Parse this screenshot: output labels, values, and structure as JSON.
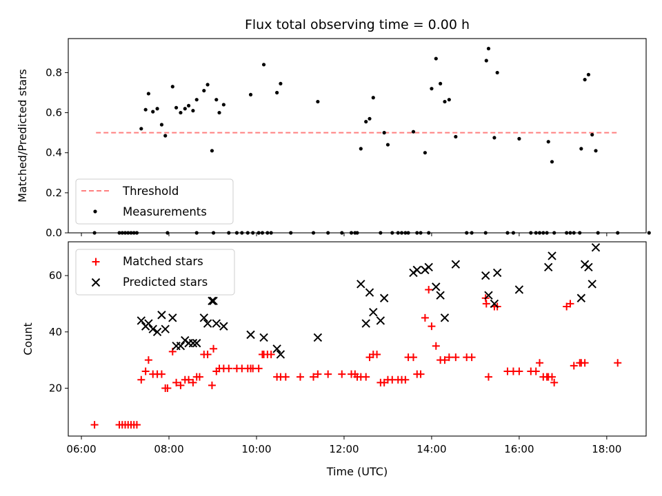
{
  "chart_data": [
    {
      "type": "scatter",
      "title": "Flux total observing time = 0.00 h",
      "xlabel": "",
      "ylabel": "Matched/Predicted stars",
      "xlim": [
        "05:42",
        "18:54"
      ],
      "ylim": [
        0.0,
        0.97
      ],
      "y_ticks": [
        0.0,
        0.2,
        0.4,
        0.6,
        0.8
      ],
      "x_ticks": [
        "06:00",
        "08:00",
        "10:00",
        "12:00",
        "14:00",
        "16:00",
        "18:00"
      ],
      "x_tick_labels_shown": false,
      "legend_position": "lower-left",
      "series": [
        {
          "name": "Threshold",
          "kind": "line",
          "style": "dashed",
          "color": "#ff7f7f",
          "points": [
            [
              "06:20",
              0.5
            ],
            [
              "18:14",
              0.5
            ]
          ]
        },
        {
          "name": "Measurements",
          "kind": "scatter",
          "marker": "dot",
          "color": "#000000",
          "points": [
            [
              "06:18",
              0.0
            ],
            [
              "06:52",
              0.0
            ],
            [
              "06:56",
              0.0
            ],
            [
              "07:00",
              0.0
            ],
            [
              "07:04",
              0.0
            ],
            [
              "07:08",
              0.0
            ],
            [
              "07:12",
              0.0
            ],
            [
              "07:16",
              0.0
            ],
            [
              "07:22",
              0.52
            ],
            [
              "07:28",
              0.615
            ],
            [
              "07:32",
              0.695
            ],
            [
              "07:38",
              0.605
            ],
            [
              "07:44",
              0.62
            ],
            [
              "07:50",
              0.54
            ],
            [
              "07:55",
              0.485
            ],
            [
              "07:58",
              0.0
            ],
            [
              "08:05",
              0.73
            ],
            [
              "08:10",
              0.625
            ],
            [
              "08:16",
              0.6
            ],
            [
              "08:22",
              0.62
            ],
            [
              "08:27",
              0.635
            ],
            [
              "08:33",
              0.61
            ],
            [
              "08:38",
              0.665
            ],
            [
              "08:38",
              0.0
            ],
            [
              "08:48",
              0.71
            ],
            [
              "08:53",
              0.74
            ],
            [
              "08:59",
              0.41
            ],
            [
              "09:01",
              0.0
            ],
            [
              "09:05",
              0.665
            ],
            [
              "09:09",
              0.6
            ],
            [
              "09:15",
              0.64
            ],
            [
              "09:22",
              0.0
            ],
            [
              "09:33",
              0.0
            ],
            [
              "09:40",
              0.0
            ],
            [
              "09:48",
              0.0
            ],
            [
              "09:52",
              0.69
            ],
            [
              "09:55",
              0.0
            ],
            [
              "10:03",
              0.0
            ],
            [
              "10:08",
              0.0
            ],
            [
              "10:10",
              0.84
            ],
            [
              "10:15",
              0.0
            ],
            [
              "10:20",
              0.0
            ],
            [
              "10:28",
              0.7
            ],
            [
              "10:33",
              0.745
            ],
            [
              "10:47",
              0.0
            ],
            [
              "11:18",
              0.0
            ],
            [
              "11:24",
              0.655
            ],
            [
              "11:38",
              0.0
            ],
            [
              "11:57",
              0.0
            ],
            [
              "12:10",
              0.0
            ],
            [
              "12:15",
              0.0
            ],
            [
              "12:18",
              0.0
            ],
            [
              "12:23",
              0.42
            ],
            [
              "12:30",
              0.555
            ],
            [
              "12:35",
              0.57
            ],
            [
              "12:40",
              0.675
            ],
            [
              "12:50",
              0.0
            ],
            [
              "12:55",
              0.5
            ],
            [
              "13:00",
              0.44
            ],
            [
              "13:06",
              0.0
            ],
            [
              "13:14",
              0.0
            ],
            [
              "13:19",
              0.0
            ],
            [
              "13:24",
              0.0
            ],
            [
              "13:28",
              0.0
            ],
            [
              "13:35",
              0.505
            ],
            [
              "13:40",
              0.0
            ],
            [
              "13:45",
              0.0
            ],
            [
              "13:51",
              0.4
            ],
            [
              "13:56",
              0.0
            ],
            [
              "14:00",
              0.72
            ],
            [
              "14:06",
              0.87
            ],
            [
              "14:12",
              0.745
            ],
            [
              "14:18",
              0.655
            ],
            [
              "14:24",
              0.665
            ],
            [
              "14:33",
              0.48
            ],
            [
              "14:48",
              0.0
            ],
            [
              "14:55",
              0.0
            ],
            [
              "15:14",
              0.0
            ],
            [
              "15:15",
              0.86
            ],
            [
              "15:18",
              0.92
            ],
            [
              "15:26",
              0.475
            ],
            [
              "15:30",
              0.8
            ],
            [
              "15:44",
              0.0
            ],
            [
              "15:52",
              0.0
            ],
            [
              "16:00",
              0.47
            ],
            [
              "16:16",
              0.0
            ],
            [
              "16:23",
              0.0
            ],
            [
              "16:28",
              0.0
            ],
            [
              "16:33",
              0.0
            ],
            [
              "16:38",
              0.0
            ],
            [
              "16:40",
              0.455
            ],
            [
              "16:45",
              0.355
            ],
            [
              "16:48",
              0.0
            ],
            [
              "17:05",
              0.0
            ],
            [
              "17:10",
              0.0
            ],
            [
              "17:15",
              0.0
            ],
            [
              "17:23",
              0.0
            ],
            [
              "17:25",
              0.42
            ],
            [
              "17:30",
              0.765
            ],
            [
              "17:35",
              0.79
            ],
            [
              "17:40",
              0.49
            ],
            [
              "17:45",
              0.41
            ],
            [
              "17:48",
              0.0
            ],
            [
              "18:15",
              0.0
            ],
            [
              "18:58",
              0.0
            ]
          ]
        }
      ]
    },
    {
      "type": "scatter",
      "title": "",
      "xlabel": "Time (UTC)",
      "ylabel": "Count",
      "xlim": [
        "05:42",
        "18:54"
      ],
      "ylim": [
        3,
        72
      ],
      "y_ticks": [
        20,
        40,
        60
      ],
      "x_ticks": [
        "06:00",
        "08:00",
        "10:00",
        "12:00",
        "14:00",
        "16:00",
        "18:00"
      ],
      "legend_position": "upper-left",
      "series": [
        {
          "name": "Matched stars",
          "kind": "scatter",
          "marker": "plus",
          "color": "#ff0000",
          "points": [
            [
              "06:18",
              7
            ],
            [
              "06:52",
              7
            ],
            [
              "06:56",
              7
            ],
            [
              "07:00",
              7
            ],
            [
              "07:04",
              7
            ],
            [
              "07:08",
              7
            ],
            [
              "07:12",
              7
            ],
            [
              "07:16",
              7
            ],
            [
              "07:22",
              23
            ],
            [
              "07:28",
              26
            ],
            [
              "07:32",
              30
            ],
            [
              "07:38",
              25
            ],
            [
              "07:44",
              25
            ],
            [
              "07:50",
              25
            ],
            [
              "07:55",
              20
            ],
            [
              "07:58",
              20
            ],
            [
              "08:05",
              33
            ],
            [
              "08:10",
              22
            ],
            [
              "08:16",
              21
            ],
            [
              "08:22",
              23
            ],
            [
              "08:27",
              23
            ],
            [
              "08:33",
              22
            ],
            [
              "08:38",
              24
            ],
            [
              "08:42",
              24
            ],
            [
              "08:48",
              32
            ],
            [
              "08:53",
              32
            ],
            [
              "08:59",
              21
            ],
            [
              "09:01",
              34
            ],
            [
              "09:05",
              26
            ],
            [
              "09:09",
              27
            ],
            [
              "09:15",
              27
            ],
            [
              "09:22",
              27
            ],
            [
              "09:33",
              27
            ],
            [
              "09:40",
              27
            ],
            [
              "09:48",
              27
            ],
            [
              "09:52",
              27
            ],
            [
              "09:55",
              27
            ],
            [
              "10:03",
              27
            ],
            [
              "10:08",
              32
            ],
            [
              "10:10",
              32
            ],
            [
              "10:15",
              32
            ],
            [
              "10:20",
              32
            ],
            [
              "10:28",
              24
            ],
            [
              "10:33",
              24
            ],
            [
              "10:40",
              24
            ],
            [
              "11:00",
              24
            ],
            [
              "11:18",
              24
            ],
            [
              "11:24",
              25
            ],
            [
              "11:38",
              25
            ],
            [
              "11:57",
              25
            ],
            [
              "12:10",
              25
            ],
            [
              "12:15",
              25
            ],
            [
              "12:18",
              24
            ],
            [
              "12:23",
              24
            ],
            [
              "12:30",
              24
            ],
            [
              "12:35",
              31
            ],
            [
              "12:40",
              32
            ],
            [
              "12:45",
              32
            ],
            [
              "12:50",
              22
            ],
            [
              "12:55",
              22
            ],
            [
              "13:00",
              23
            ],
            [
              "13:06",
              23
            ],
            [
              "13:14",
              23
            ],
            [
              "13:19",
              23
            ],
            [
              "13:24",
              23
            ],
            [
              "13:28",
              31
            ],
            [
              "13:35",
              31
            ],
            [
              "13:40",
              25
            ],
            [
              "13:45",
              25
            ],
            [
              "13:51",
              45
            ],
            [
              "13:56",
              55
            ],
            [
              "14:00",
              42
            ],
            [
              "14:06",
              35
            ],
            [
              "14:12",
              30
            ],
            [
              "14:18",
              30
            ],
            [
              "14:24",
              31
            ],
            [
              "14:33",
              31
            ],
            [
              "14:48",
              31
            ],
            [
              "14:55",
              31
            ],
            [
              "15:14",
              52
            ],
            [
              "15:15",
              50
            ],
            [
              "15:18",
              24
            ],
            [
              "15:26",
              49
            ],
            [
              "15:30",
              49
            ],
            [
              "15:44",
              26
            ],
            [
              "15:52",
              26
            ],
            [
              "16:00",
              26
            ],
            [
              "16:16",
              26
            ],
            [
              "16:23",
              26
            ],
            [
              "16:28",
              29
            ],
            [
              "16:33",
              24
            ],
            [
              "16:38",
              24
            ],
            [
              "16:40",
              24
            ],
            [
              "16:45",
              24
            ],
            [
              "16:48",
              22
            ],
            [
              "17:05",
              49
            ],
            [
              "17:10",
              50
            ],
            [
              "17:15",
              28
            ],
            [
              "17:23",
              29
            ],
            [
              "17:25",
              29
            ],
            [
              "17:30",
              29
            ],
            [
              "18:15",
              29
            ]
          ]
        },
        {
          "name": "Predicted stars",
          "kind": "scatter",
          "marker": "x",
          "color": "#000000",
          "points": [
            [
              "07:22",
              44
            ],
            [
              "07:28",
              42
            ],
            [
              "07:32",
              43
            ],
            [
              "07:38",
              41
            ],
            [
              "07:44",
              40
            ],
            [
              "07:50",
              46
            ],
            [
              "07:55",
              41
            ],
            [
              "08:05",
              45
            ],
            [
              "08:10",
              35
            ],
            [
              "08:16",
              35
            ],
            [
              "08:22",
              37
            ],
            [
              "08:27",
              36
            ],
            [
              "08:33",
              36
            ],
            [
              "08:38",
              36
            ],
            [
              "08:48",
              45
            ],
            [
              "08:53",
              43
            ],
            [
              "08:59",
              51
            ],
            [
              "09:01",
              51
            ],
            [
              "09:05",
              43
            ],
            [
              "09:15",
              42
            ],
            [
              "09:52",
              39
            ],
            [
              "10:10",
              38
            ],
            [
              "10:28",
              34
            ],
            [
              "10:33",
              32
            ],
            [
              "11:24",
              38
            ],
            [
              "12:23",
              57
            ],
            [
              "12:30",
              43
            ],
            [
              "12:35",
              54
            ],
            [
              "12:40",
              47
            ],
            [
              "12:50",
              44
            ],
            [
              "12:55",
              52
            ],
            [
              "13:35",
              61
            ],
            [
              "13:40",
              62
            ],
            [
              "13:51",
              62
            ],
            [
              "13:56",
              63
            ],
            [
              "14:06",
              56
            ],
            [
              "14:12",
              53
            ],
            [
              "14:18",
              45
            ],
            [
              "14:33",
              64
            ],
            [
              "15:14",
              60
            ],
            [
              "15:18",
              53
            ],
            [
              "15:26",
              50
            ],
            [
              "15:30",
              61
            ],
            [
              "16:00",
              55
            ],
            [
              "16:40",
              63
            ],
            [
              "16:45",
              67
            ],
            [
              "17:25",
              52
            ],
            [
              "17:30",
              64
            ],
            [
              "17:35",
              63
            ],
            [
              "17:40",
              57
            ],
            [
              "17:45",
              70
            ]
          ]
        }
      ]
    }
  ]
}
